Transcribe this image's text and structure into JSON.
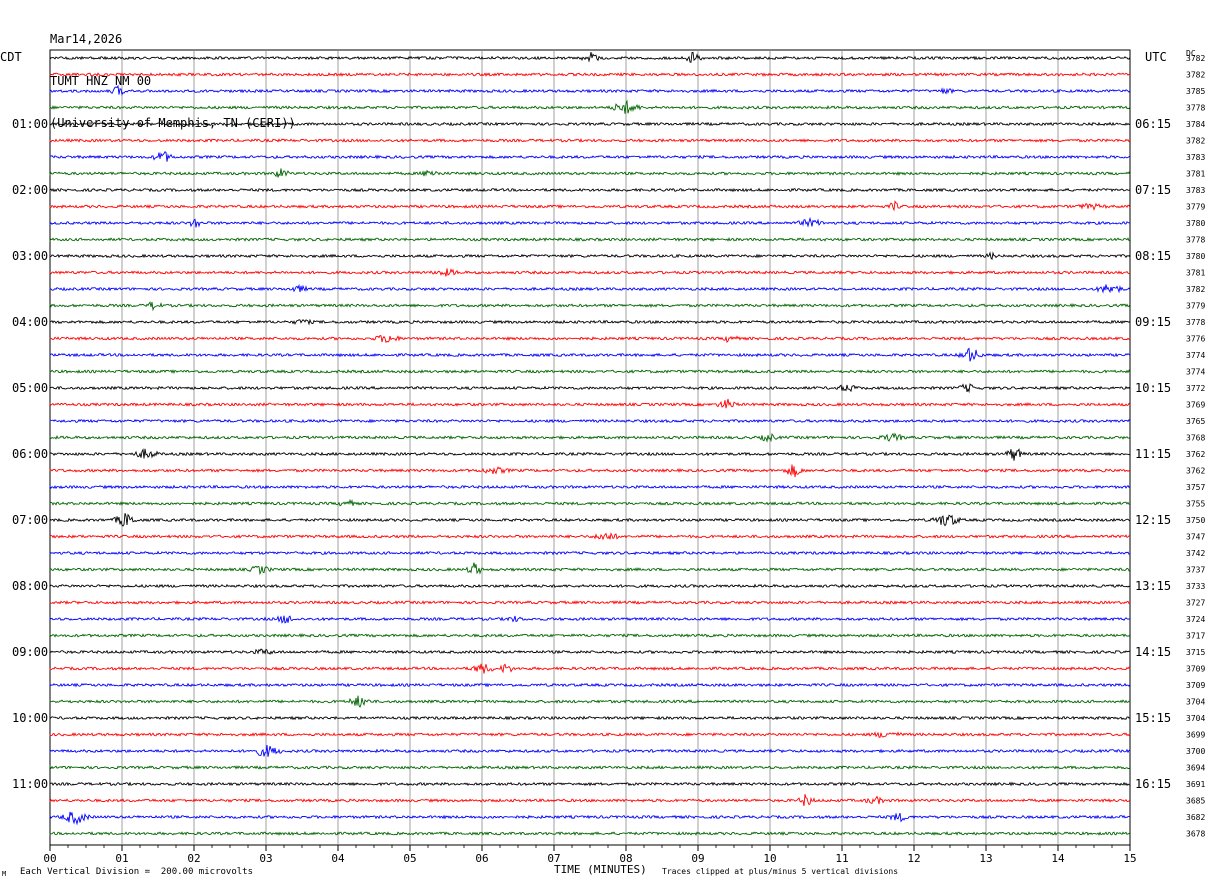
{
  "header": {
    "date": "Mar14,2026",
    "station": "TUMT HNZ NM 00",
    "institution": "(University of Memphis, TN (CERI))"
  },
  "left_timezone": "CDT",
  "right_timezone": "UTC",
  "dc_label": "DC",
  "footer": {
    "scale_note": "Each Vertical Division =  200.00 microvolts",
    "clip_note": "Traces clipped at plus/minus 5 vertical divisions",
    "corner_mark": "M"
  },
  "colors": [
    "#000000",
    "#ff0000",
    "#0000ff",
    "#006400"
  ],
  "chart_data": {
    "type": "line",
    "title": "",
    "xlabel": "TIME (MINUTES)",
    "ylabel": "",
    "xlim": [
      0,
      15
    ],
    "x_ticks": [
      "00",
      "01",
      "02",
      "03",
      "04",
      "05",
      "06",
      "07",
      "08",
      "09",
      "10",
      "11",
      "12",
      "13",
      "14",
      "15"
    ],
    "grid": true,
    "left_hour_labels": [
      "01:00",
      "02:00",
      "03:00",
      "04:00",
      "05:00",
      "06:00",
      "07:00",
      "08:00",
      "09:00",
      "10:00",
      "11:00"
    ],
    "right_hour_labels": [
      "06:15",
      "07:15",
      "08:15",
      "09:15",
      "10:15",
      "11:15",
      "12:15",
      "13:15",
      "14:15",
      "15:15",
      "16:15"
    ],
    "trace_dc_offsets": [
      3782,
      3782,
      3785,
      3778,
      3784,
      3782,
      3783,
      3781,
      3783,
      3779,
      3780,
      3778,
      3780,
      3781,
      3782,
      3779,
      3778,
      3776,
      3774,
      3774,
      3772,
      3769,
      3765,
      3768,
      3762,
      3762,
      3757,
      3755,
      3750,
      3747,
      3742,
      3737,
      3733,
      3727,
      3724,
      3717,
      3715,
      3709,
      3709,
      3704,
      3704,
      3699,
      3700,
      3694,
      3691,
      3685,
      3682,
      3678
    ]
  }
}
